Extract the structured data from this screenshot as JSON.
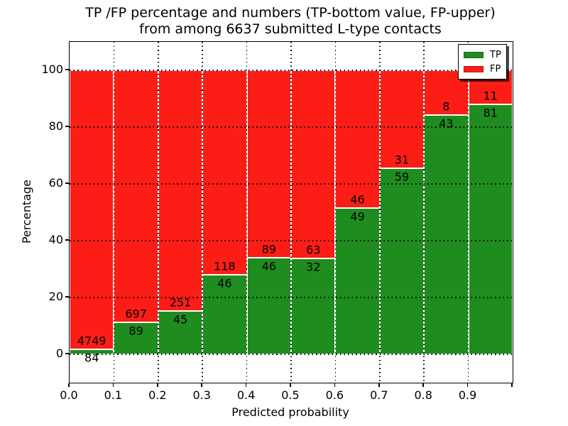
{
  "title": {
    "line1": "TP /FP percentage and numbers (TP-bottom value, FP-upper)",
    "line2": "from among 6637 submitted L-type contacts"
  },
  "chart_data": {
    "type": "bar",
    "stacked": true,
    "normalized_to_percent": 100,
    "title": "TP /FP percentage and numbers (TP-bottom value, FP-upper)\nfrom among 6637 submitted L-type contacts",
    "total_submitted": 6637,
    "xlabel": "Predicted probability",
    "ylabel": "Percentage",
    "xlim": [
      0.0,
      1.0
    ],
    "ylim": [
      -10,
      110
    ],
    "x_bin_edges": [
      0.0,
      0.1,
      0.2,
      0.3,
      0.4,
      0.5,
      0.6,
      0.7,
      0.8,
      0.9,
      1.0
    ],
    "x_tick_labels": [
      "0.0",
      "0.1",
      "0.2",
      "0.3",
      "0.4",
      "0.5",
      "0.6",
      "0.7",
      "0.8",
      "0.9"
    ],
    "y_ticks": [
      0,
      20,
      40,
      60,
      80,
      100
    ],
    "y_tick_labels": [
      "0",
      "20",
      "40",
      "60",
      "80",
      "100"
    ],
    "grid": {
      "style": "dotted",
      "color": "#000000",
      "drawn_above_bars": true
    },
    "series": [
      {
        "name": "TP",
        "color": "#1f8c1f",
        "counts": [
          84,
          89,
          45,
          46,
          46,
          32,
          49,
          59,
          43,
          81
        ]
      },
      {
        "name": "FP",
        "color": "#fc1d17",
        "counts": [
          4749,
          697,
          251,
          118,
          89,
          63,
          46,
          31,
          8,
          11
        ]
      }
    ],
    "tp_percent_of_bin": [
      1.74,
      11.32,
      15.2,
      28.05,
      34.07,
      33.68,
      51.58,
      65.56,
      84.31,
      88.04
    ],
    "legend": {
      "position": "upper right",
      "entries": [
        "TP",
        "FP"
      ]
    }
  }
}
